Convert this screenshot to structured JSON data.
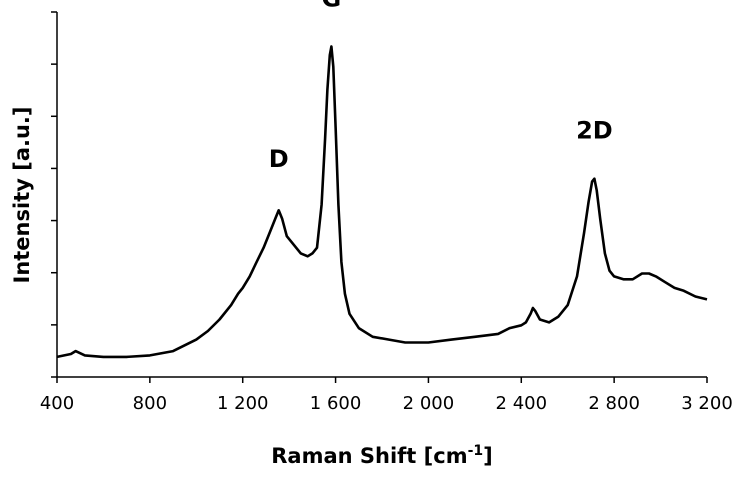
{
  "chart_data": {
    "type": "line",
    "title": "",
    "xlabel": "Raman Shift [cm",
    "xlabel_superscript": "-1",
    "xlabel_suffix": "]",
    "ylabel": "Intensity [a.u.]",
    "xlim": [
      400,
      3200
    ],
    "x_ticks": [
      400,
      800,
      1200,
      1600,
      2000,
      2400,
      2800,
      3200
    ],
    "x_tick_labels": [
      "400",
      "800",
      "1 200",
      "1 600",
      "2 000",
      "2 400",
      "2 800",
      "3 200"
    ],
    "y_tick_count": 8,
    "y_tick_labels_shown": false,
    "grid": false,
    "legend": "none",
    "line_color": "#000000",
    "series": [
      {
        "x": [
          400,
          460,
          480,
          520,
          600,
          700,
          800,
          900,
          1000,
          1050,
          1100,
          1150,
          1180,
          1200,
          1230,
          1260,
          1290,
          1320,
          1340,
          1355,
          1370,
          1390,
          1420,
          1450,
          1480,
          1500,
          1520,
          1540,
          1555,
          1565,
          1575,
          1582,
          1590,
          1600,
          1612,
          1625,
          1640,
          1660,
          1700,
          1760,
          1830,
          1900,
          2000,
          2100,
          2200,
          2300,
          2350,
          2400,
          2420,
          2440,
          2450,
          2460,
          2480,
          2520,
          2560,
          2600,
          2640,
          2670,
          2690,
          2705,
          2715,
          2725,
          2740,
          2760,
          2780,
          2800,
          2840,
          2880,
          2920,
          2950,
          2980,
          3020,
          3060,
          3100,
          3150,
          3200
        ],
        "y": [
          0.02,
          0.03,
          0.04,
          0.025,
          0.02,
          0.02,
          0.025,
          0.04,
          0.08,
          0.11,
          0.15,
          0.2,
          0.24,
          0.26,
          0.3,
          0.35,
          0.4,
          0.46,
          0.5,
          0.53,
          0.5,
          0.44,
          0.41,
          0.38,
          0.37,
          0.38,
          0.4,
          0.55,
          0.78,
          0.95,
          1.07,
          1.1,
          1.03,
          0.82,
          0.55,
          0.35,
          0.24,
          0.17,
          0.12,
          0.09,
          0.08,
          0.07,
          0.07,
          0.08,
          0.09,
          0.1,
          0.12,
          0.13,
          0.14,
          0.17,
          0.19,
          0.18,
          0.15,
          0.14,
          0.16,
          0.2,
          0.3,
          0.45,
          0.56,
          0.63,
          0.64,
          0.6,
          0.5,
          0.38,
          0.32,
          0.3,
          0.29,
          0.29,
          0.31,
          0.31,
          0.3,
          0.28,
          0.26,
          0.25,
          0.23,
          0.22
        ]
      }
    ],
    "ylim": [
      -0.05,
      1.22
    ],
    "peak_annotations": [
      {
        "label": "D",
        "x": 1355,
        "y": 0.68
      },
      {
        "label": "G",
        "x": 1582,
        "y": 1.24
      },
      {
        "label": "2D",
        "x": 2715,
        "y": 0.78
      }
    ]
  }
}
